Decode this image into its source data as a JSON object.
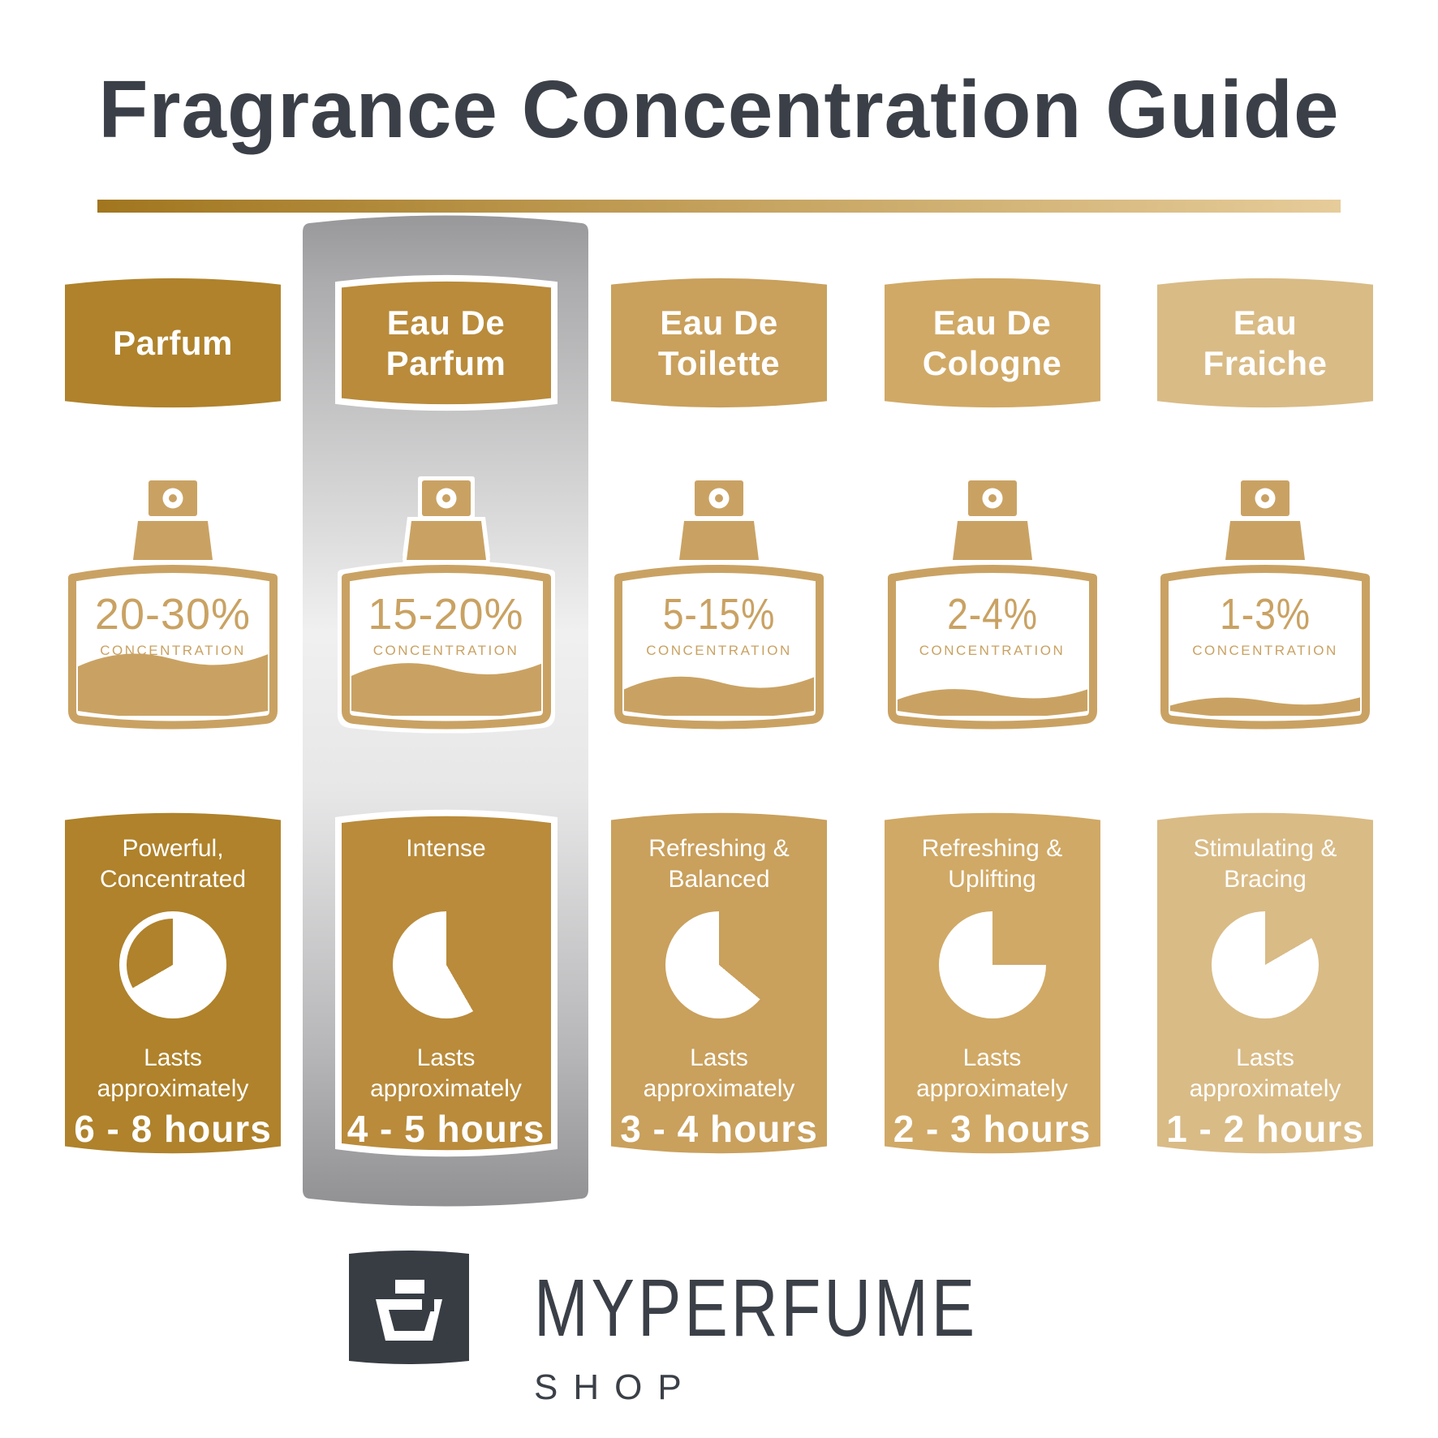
{
  "title": "Fragrance Concentration Guide",
  "colors": {
    "background": "#FFFFFF",
    "title_text": "#3B4048",
    "gold_underline_left": "#A1761F",
    "gold_underline_right": "#E6CC9A",
    "bottle_gold": "#C9A263",
    "silver_top": "#98989A",
    "silver_mid": "#F0F0F0",
    "silver_bottom": "#919193",
    "logo_charcoal": "#383D44"
  },
  "columns": [
    {
      "id": "parfum",
      "badge_line1": "Parfum",
      "badge_line2": "",
      "concentration": "20-30%",
      "concentration_label": "CONCENTRATION",
      "desc_line1": "Powerful,",
      "desc_line2": "Concentrated",
      "lasts_line1": "Lasts",
      "lasts_line2": "approximately",
      "duration": "6 - 8 hours",
      "color": "#AF822B",
      "bottle_fill_percent": 42,
      "highlighted": false,
      "clock": {
        "ring": true,
        "gold_from": 240,
        "gold_to": 360
      }
    },
    {
      "id": "eau-de-parfum",
      "badge_line1": "Eau De",
      "badge_line2": "Parfum",
      "concentration": "15-20%",
      "concentration_label": "CONCENTRATION",
      "desc_line1": "Intense",
      "desc_line2": "",
      "lasts_line1": "Lasts",
      "lasts_line2": "approximately",
      "duration": "4 - 5 hours",
      "color": "#B98B3B",
      "bottle_fill_percent": 35,
      "highlighted": true,
      "clock": {
        "ring": false,
        "gold_from": 0,
        "gold_to": 150
      }
    },
    {
      "id": "eau-de-toilette",
      "badge_line1": "Eau De",
      "badge_line2": "Toilette",
      "concentration": "5-15%",
      "concentration_label": "CONCENTRATION",
      "desc_line1": "Refreshing &",
      "desc_line2": "Balanced",
      "lasts_line1": "Lasts",
      "lasts_line2": "approximately",
      "duration": "3 - 4 hours",
      "color": "#C9A05C",
      "bottle_fill_percent": 25,
      "highlighted": false,
      "clock": {
        "ring": false,
        "gold_from": 0,
        "gold_to": 130
      }
    },
    {
      "id": "eau-de-cologne",
      "badge_line1": "Eau De",
      "badge_line2": "Cologne",
      "concentration": "2-4%",
      "concentration_label": "CONCENTRATION",
      "desc_line1": "Refreshing &",
      "desc_line2": "Uplifting",
      "lasts_line1": "Lasts",
      "lasts_line2": "approximately",
      "duration": "2 - 3 hours",
      "color": "#D0A966",
      "bottle_fill_percent": 16,
      "highlighted": false,
      "clock": {
        "ring": false,
        "gold_from": 0,
        "gold_to": 90
      }
    },
    {
      "id": "eau-fraiche",
      "badge_line1": "Eau",
      "badge_line2": "Fraiche",
      "concentration": "1-3%",
      "concentration_label": "CONCENTRATION",
      "desc_line1": "Stimulating &",
      "desc_line2": "Bracing",
      "lasts_line1": "Lasts",
      "lasts_line2": "approximately",
      "duration": "1 - 2 hours",
      "color": "#D9BB86",
      "bottle_fill_percent": 10,
      "highlighted": false,
      "clock": {
        "ring": false,
        "gold_from": 0,
        "gold_to": 60
      }
    }
  ],
  "footer": {
    "brand": "MYPERFUME",
    "sub": "SHOP"
  }
}
